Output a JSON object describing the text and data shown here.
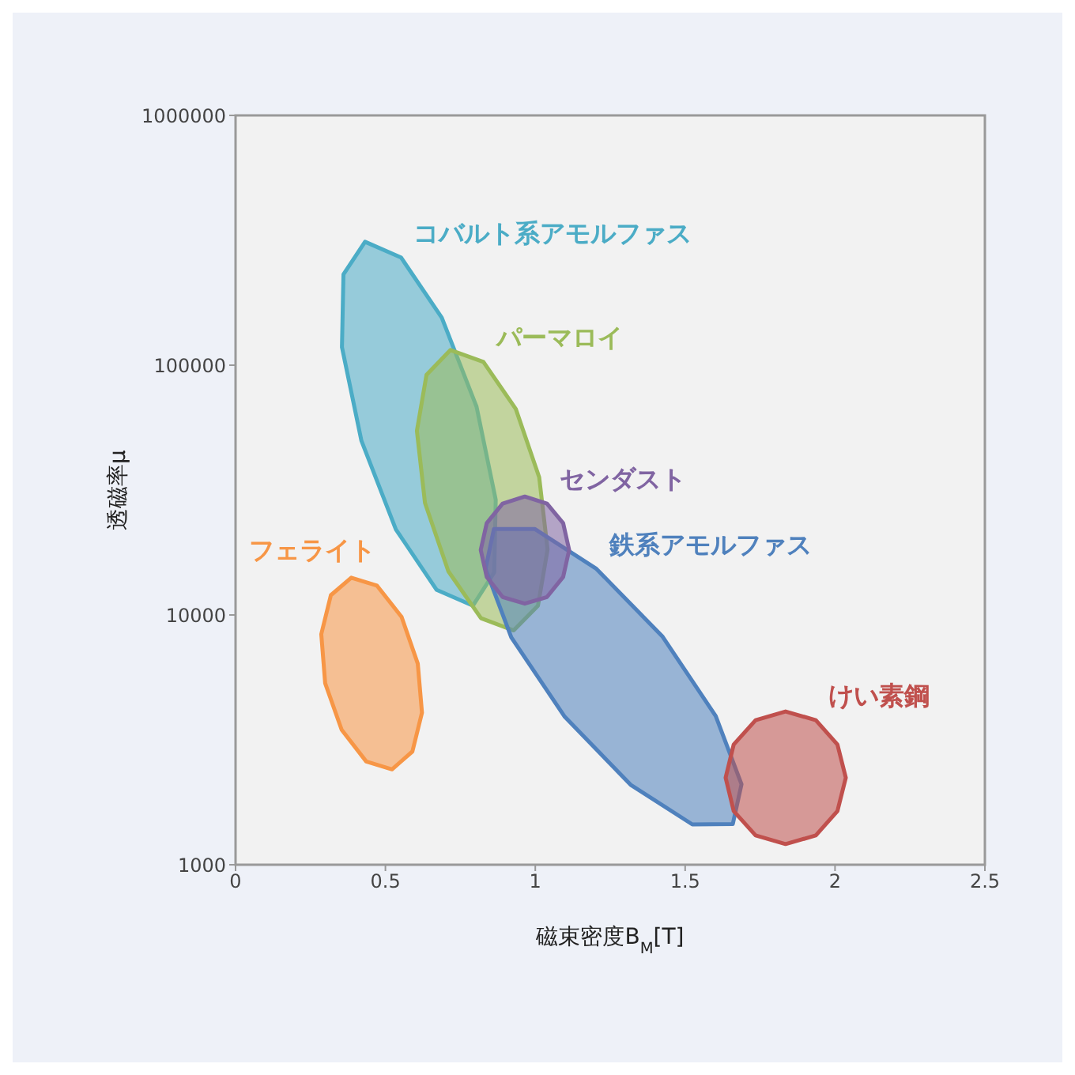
{
  "chart_data": {
    "type": "area",
    "xlabel": "磁束密度B$_{M}$[T]",
    "ylabel": "透磁率μ",
    "xlim": [
      0,
      2.5
    ],
    "xticks": [
      0,
      0.5,
      1,
      1.5,
      2,
      2.5
    ],
    "ylim": [
      1000,
      1000000
    ],
    "yticks": [
      1000,
      10000,
      100000,
      1000000
    ],
    "log": "y",
    "marker": "none",
    "series": [
      {
        "name": "コバルト系アモルファス",
        "color": "#4bacc6",
        "x": [
          0.804,
          0.868,
          0.863,
          0.792,
          0.671,
          0.535,
          0.42,
          0.355,
          0.36,
          0.432,
          0.552,
          0.688
        ],
        "values": [
          68200,
          28900,
          14800,
          10900,
          12600,
          22000,
          49800,
          118000,
          231000,
          312000,
          270000,
          155000
        ]
      },
      {
        "name": "パーマロイ",
        "color": "#9bbb59",
        "x": [
          1.013,
          1.041,
          1.009,
          0.928,
          0.819,
          0.71,
          0.632,
          0.605,
          0.637,
          0.717,
          0.827,
          0.935
        ],
        "values": [
          35600,
          18300,
          10900,
          8670,
          9700,
          14960,
          28100,
          54600,
          91400,
          115000,
          103000,
          66800
        ]
      },
      {
        "name": "フェライト",
        "color": "#f79646",
        "x": [
          0.608,
          0.622,
          0.59,
          0.522,
          0.436,
          0.354,
          0.299,
          0.286,
          0.318,
          0.386,
          0.472,
          0.554
        ],
        "values": [
          6380,
          4060,
          2840,
          2410,
          2590,
          3470,
          5330,
          8380,
          12000,
          14100,
          13100,
          9820
        ]
      },
      {
        "name": "鉄系アモルファス",
        "color": "#4f81bd",
        "x": [
          1.425,
          1.602,
          1.688,
          1.659,
          1.524,
          1.318,
          1.097,
          0.92,
          0.834,
          0.862,
          0.998,
          1.204
        ],
        "values": [
          8180,
          3940,
          2100,
          1455,
          1450,
          2090,
          3930,
          8130,
          15300,
          22100,
          22100,
          15300
        ]
      },
      {
        "name": "センダスト",
        "color": "#8064a2",
        "x": [
          1.113,
          1.093,
          1.039,
          0.965,
          0.891,
          0.838,
          0.818,
          0.838,
          0.891,
          0.965,
          1.039,
          1.093
        ],
        "values": [
          18200,
          23300,
          27900,
          29800,
          27900,
          23300,
          18200,
          14200,
          11800,
          11100,
          11800,
          14200
        ]
      },
      {
        "name": "けい素鋼",
        "color": "#c0504d",
        "x": [
          2.036,
          2.008,
          1.936,
          1.835,
          1.735,
          1.662,
          1.635,
          1.662,
          1.735,
          1.835,
          1.936,
          2.008
        ],
        "values": [
          2230,
          3030,
          3790,
          4110,
          3790,
          3030,
          2230,
          1640,
          1310,
          1210,
          1310,
          1640
        ]
      }
    ]
  }
}
